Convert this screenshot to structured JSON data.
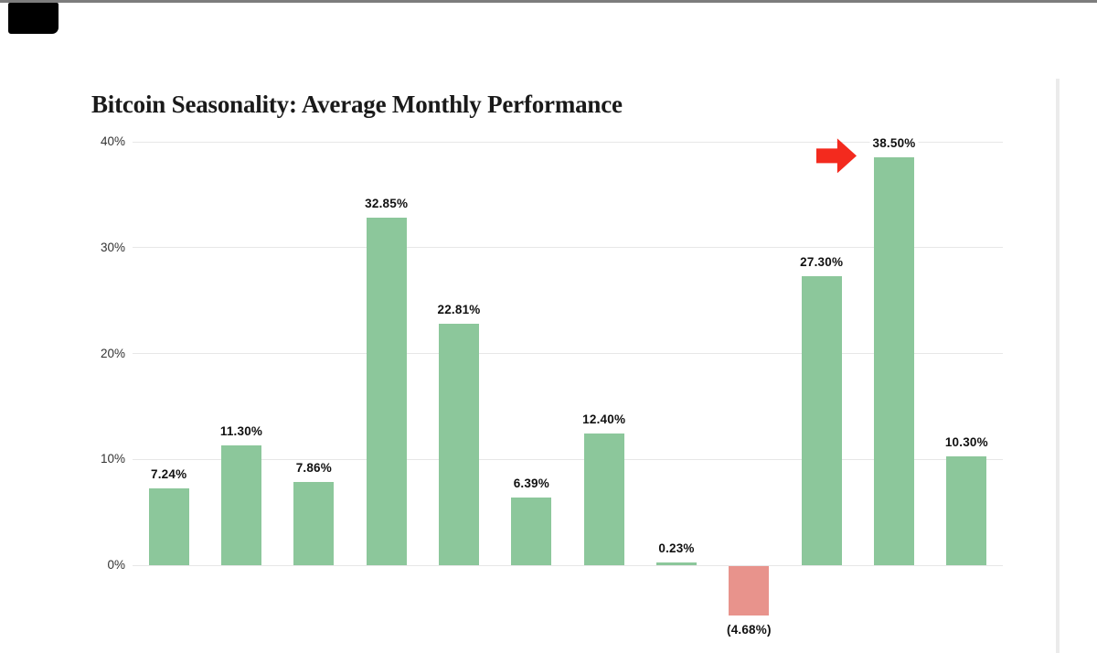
{
  "header": {
    "title": "Bitcoin Seasonality: Average Monthly Performance"
  },
  "chart_data": {
    "type": "bar",
    "title": "Bitcoin Seasonality: Average Monthly Performance",
    "values": [
      7.24,
      11.3,
      7.86,
      32.85,
      22.81,
      6.39,
      12.4,
      0.23,
      -4.68,
      27.3,
      38.5,
      10.3
    ],
    "value_labels": [
      "7.24%",
      "11.30%",
      "7.86%",
      "32.85%",
      "22.81%",
      "6.39%",
      "12.40%",
      "0.23%",
      "(4.68%)",
      "27.30%",
      "38.50%",
      "10.30%"
    ],
    "y_axis": {
      "unit": "%",
      "ticks": [
        40,
        30,
        20,
        10,
        0
      ],
      "tick_labels": [
        "40%",
        "30%",
        "20%",
        "10%",
        "0%"
      ],
      "range_shown": [
        -8,
        40
      ]
    },
    "grid": true,
    "legend": false,
    "xlabel": "",
    "ylabel": "",
    "bar_positive_color": "#8CC79B",
    "bar_negative_color": "#E8938C",
    "annotations": [
      {
        "type": "block-arrow-right",
        "target_index": 10,
        "target_value": "38.50%",
        "color": "#F32A1E"
      }
    ]
  },
  "decorations": {
    "top_border_color": "#7D7D7D",
    "top_left_box_color": "#000000",
    "right_divider_color": "#EBEBEB",
    "gridline_color": "#E7E7E7",
    "title_color": "#1A1A1A",
    "label_color": "#111111",
    "tick_color": "#333333",
    "background_color": "#FFFFFF"
  }
}
